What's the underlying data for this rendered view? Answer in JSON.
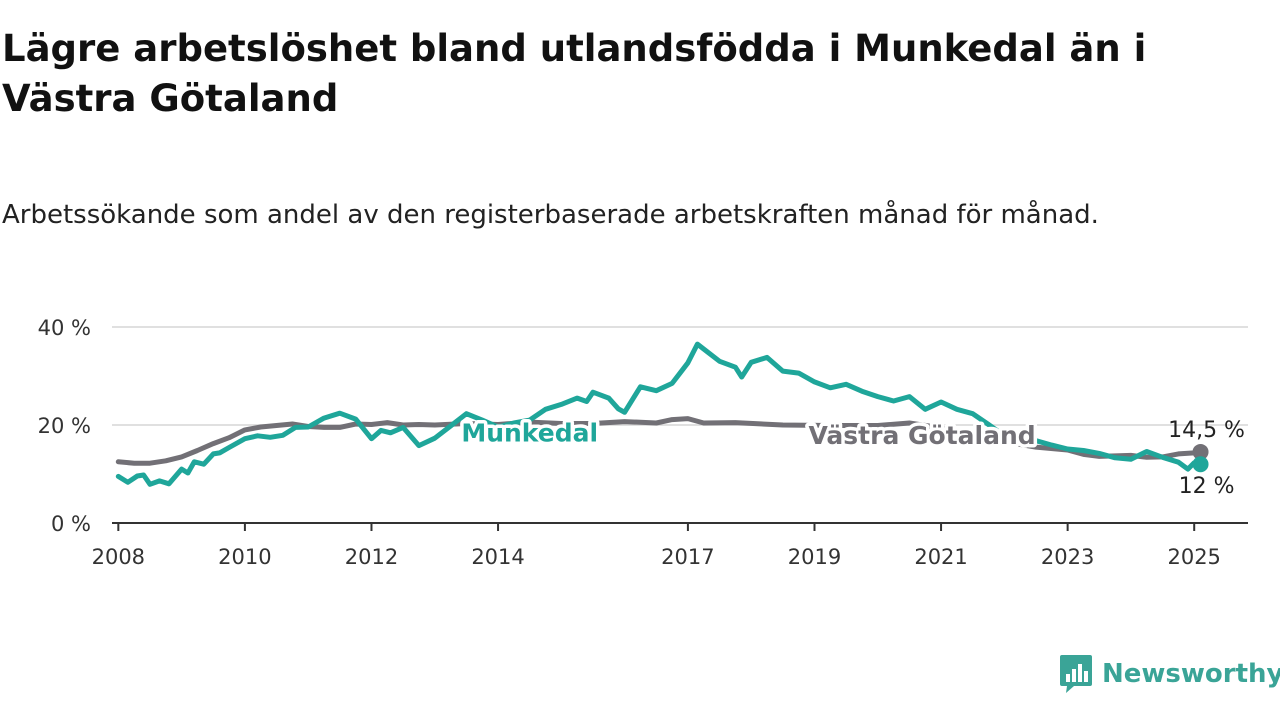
{
  "colors": {
    "munkedal": "#1fa69a",
    "vastra": "#727076",
    "axis": "#333333",
    "grid": "#d6d6d6",
    "brand": "#3aa497"
  },
  "brand": {
    "name": "Newsworthy",
    "icon": "chart-bar-badge-icon"
  },
  "chart_data": {
    "type": "line",
    "title": "Lägre arbetslöshet bland utlandsfödda i Munkedal än i Västra Götaland",
    "subtitle": "Arbetssökande som andel av den registerbaserade arbetskraften månad för månad.",
    "xlabel": "",
    "ylabel": "",
    "ylim": [
      0,
      40
    ],
    "xlim": [
      2007.9,
      2025.85
    ],
    "grid": true,
    "legend": "inline labels",
    "y_ticks": [
      {
        "value": 0,
        "label": "0 %"
      },
      {
        "value": 20,
        "label": "20 %"
      },
      {
        "value": 40,
        "label": "40 %"
      }
    ],
    "x_ticks": [
      {
        "value": 2008,
        "label": "2008"
      },
      {
        "value": 2010,
        "label": "2010"
      },
      {
        "value": 2012,
        "label": "2012"
      },
      {
        "value": 2014,
        "label": "2014"
      },
      {
        "value": 2017,
        "label": "2017"
      },
      {
        "value": 2019,
        "label": "2019"
      },
      {
        "value": 2021,
        "label": "2021"
      },
      {
        "value": 2023,
        "label": "2023"
      },
      {
        "value": 2025,
        "label": "2025"
      }
    ],
    "series": [
      {
        "name": "Västra Götaland",
        "color": "#727076",
        "end_label": "14,5 %",
        "points": [
          [
            2008.0,
            12.5
          ],
          [
            2008.25,
            12.2
          ],
          [
            2008.5,
            12.2
          ],
          [
            2008.75,
            12.7
          ],
          [
            2009.0,
            13.5
          ],
          [
            2009.25,
            14.8
          ],
          [
            2009.5,
            16.2
          ],
          [
            2009.75,
            17.4
          ],
          [
            2010.0,
            19.0
          ],
          [
            2010.25,
            19.6
          ],
          [
            2010.5,
            19.9
          ],
          [
            2010.75,
            20.2
          ],
          [
            2011.0,
            19.7
          ],
          [
            2011.25,
            19.5
          ],
          [
            2011.5,
            19.5
          ],
          [
            2011.75,
            20.2
          ],
          [
            2012.0,
            20.1
          ],
          [
            2012.25,
            20.5
          ],
          [
            2012.5,
            20.0
          ],
          [
            2012.75,
            20.1
          ],
          [
            2013.0,
            20.0
          ],
          [
            2013.5,
            20.3
          ],
          [
            2014.0,
            20.1
          ],
          [
            2014.5,
            20.6
          ],
          [
            2015.0,
            20.3
          ],
          [
            2015.5,
            20.3
          ],
          [
            2016.0,
            20.7
          ],
          [
            2016.5,
            20.4
          ],
          [
            2016.75,
            21.1
          ],
          [
            2017.0,
            21.3
          ],
          [
            2017.25,
            20.4
          ],
          [
            2017.75,
            20.5
          ],
          [
            2018.5,
            20.0
          ],
          [
            2019.25,
            19.9
          ],
          [
            2020.0,
            19.9
          ],
          [
            2020.5,
            20.4
          ],
          [
            2021.0,
            19.4
          ],
          [
            2021.5,
            17.6
          ],
          [
            2022.0,
            16.6
          ],
          [
            2022.5,
            15.5
          ],
          [
            2023.0,
            14.9
          ],
          [
            2023.25,
            14.0
          ],
          [
            2023.5,
            13.6
          ],
          [
            2024.0,
            13.8
          ],
          [
            2024.25,
            13.4
          ],
          [
            2024.5,
            13.5
          ],
          [
            2024.75,
            14.1
          ],
          [
            2025.0,
            14.3
          ],
          [
            2025.1,
            14.5
          ]
        ]
      },
      {
        "name": "Munkedal",
        "color": "#1fa69a",
        "end_label": "12 %",
        "points": [
          [
            2008.0,
            9.5
          ],
          [
            2008.15,
            8.3
          ],
          [
            2008.3,
            9.6
          ],
          [
            2008.4,
            9.8
          ],
          [
            2008.5,
            7.9
          ],
          [
            2008.65,
            8.6
          ],
          [
            2008.8,
            8.0
          ],
          [
            2009.0,
            11.0
          ],
          [
            2009.1,
            10.2
          ],
          [
            2009.2,
            12.5
          ],
          [
            2009.35,
            12.0
          ],
          [
            2009.5,
            14.1
          ],
          [
            2009.6,
            14.3
          ],
          [
            2009.75,
            15.4
          ],
          [
            2010.0,
            17.2
          ],
          [
            2010.2,
            17.8
          ],
          [
            2010.4,
            17.5
          ],
          [
            2010.6,
            17.9
          ],
          [
            2010.8,
            19.5
          ],
          [
            2011.0,
            19.6
          ],
          [
            2011.25,
            21.4
          ],
          [
            2011.5,
            22.4
          ],
          [
            2011.75,
            21.2
          ],
          [
            2012.0,
            17.2
          ],
          [
            2012.15,
            18.9
          ],
          [
            2012.3,
            18.4
          ],
          [
            2012.5,
            19.5
          ],
          [
            2012.75,
            15.8
          ],
          [
            2013.0,
            17.3
          ],
          [
            2013.25,
            19.8
          ],
          [
            2013.5,
            22.3
          ],
          [
            2013.75,
            21.0
          ],
          [
            2014.0,
            19.6
          ],
          [
            2014.25,
            20.4
          ],
          [
            2014.5,
            21.0
          ],
          [
            2014.75,
            23.2
          ],
          [
            2015.0,
            24.2
          ],
          [
            2015.25,
            25.5
          ],
          [
            2015.4,
            24.8
          ],
          [
            2015.5,
            26.7
          ],
          [
            2015.75,
            25.5
          ],
          [
            2015.9,
            23.3
          ],
          [
            2016.0,
            22.6
          ],
          [
            2016.25,
            27.8
          ],
          [
            2016.5,
            27.0
          ],
          [
            2016.75,
            28.5
          ],
          [
            2017.0,
            32.7
          ],
          [
            2017.15,
            36.5
          ],
          [
            2017.3,
            35.0
          ],
          [
            2017.5,
            33.0
          ],
          [
            2017.75,
            31.8
          ],
          [
            2017.85,
            29.8
          ],
          [
            2018.0,
            32.8
          ],
          [
            2018.25,
            33.8
          ],
          [
            2018.5,
            31.0
          ],
          [
            2018.75,
            30.6
          ],
          [
            2019.0,
            28.8
          ],
          [
            2019.25,
            27.6
          ],
          [
            2019.5,
            28.3
          ],
          [
            2019.75,
            26.9
          ],
          [
            2020.0,
            25.8
          ],
          [
            2020.25,
            24.9
          ],
          [
            2020.5,
            25.8
          ],
          [
            2020.75,
            23.2
          ],
          [
            2021.0,
            24.7
          ],
          [
            2021.25,
            23.2
          ],
          [
            2021.5,
            22.3
          ],
          [
            2021.75,
            20.1
          ],
          [
            2022.0,
            17.8
          ],
          [
            2022.25,
            17.3
          ],
          [
            2022.5,
            16.8
          ],
          [
            2022.75,
            15.9
          ],
          [
            2023.0,
            15.1
          ],
          [
            2023.25,
            14.8
          ],
          [
            2023.5,
            14.2
          ],
          [
            2023.75,
            13.3
          ],
          [
            2024.0,
            13.0
          ],
          [
            2024.25,
            14.6
          ],
          [
            2024.5,
            13.4
          ],
          [
            2024.75,
            12.4
          ],
          [
            2024.9,
            11.0
          ],
          [
            2025.0,
            12.3
          ],
          [
            2025.1,
            12.0
          ]
        ]
      }
    ],
    "annotations": [
      {
        "text": "Munkedal",
        "series": "Munkedal",
        "x": 2014.5,
        "y": 18.5
      },
      {
        "text": "Västra Götaland",
        "series": "Västra Götaland",
        "x": 2020.7,
        "y": 18.0
      }
    ]
  }
}
